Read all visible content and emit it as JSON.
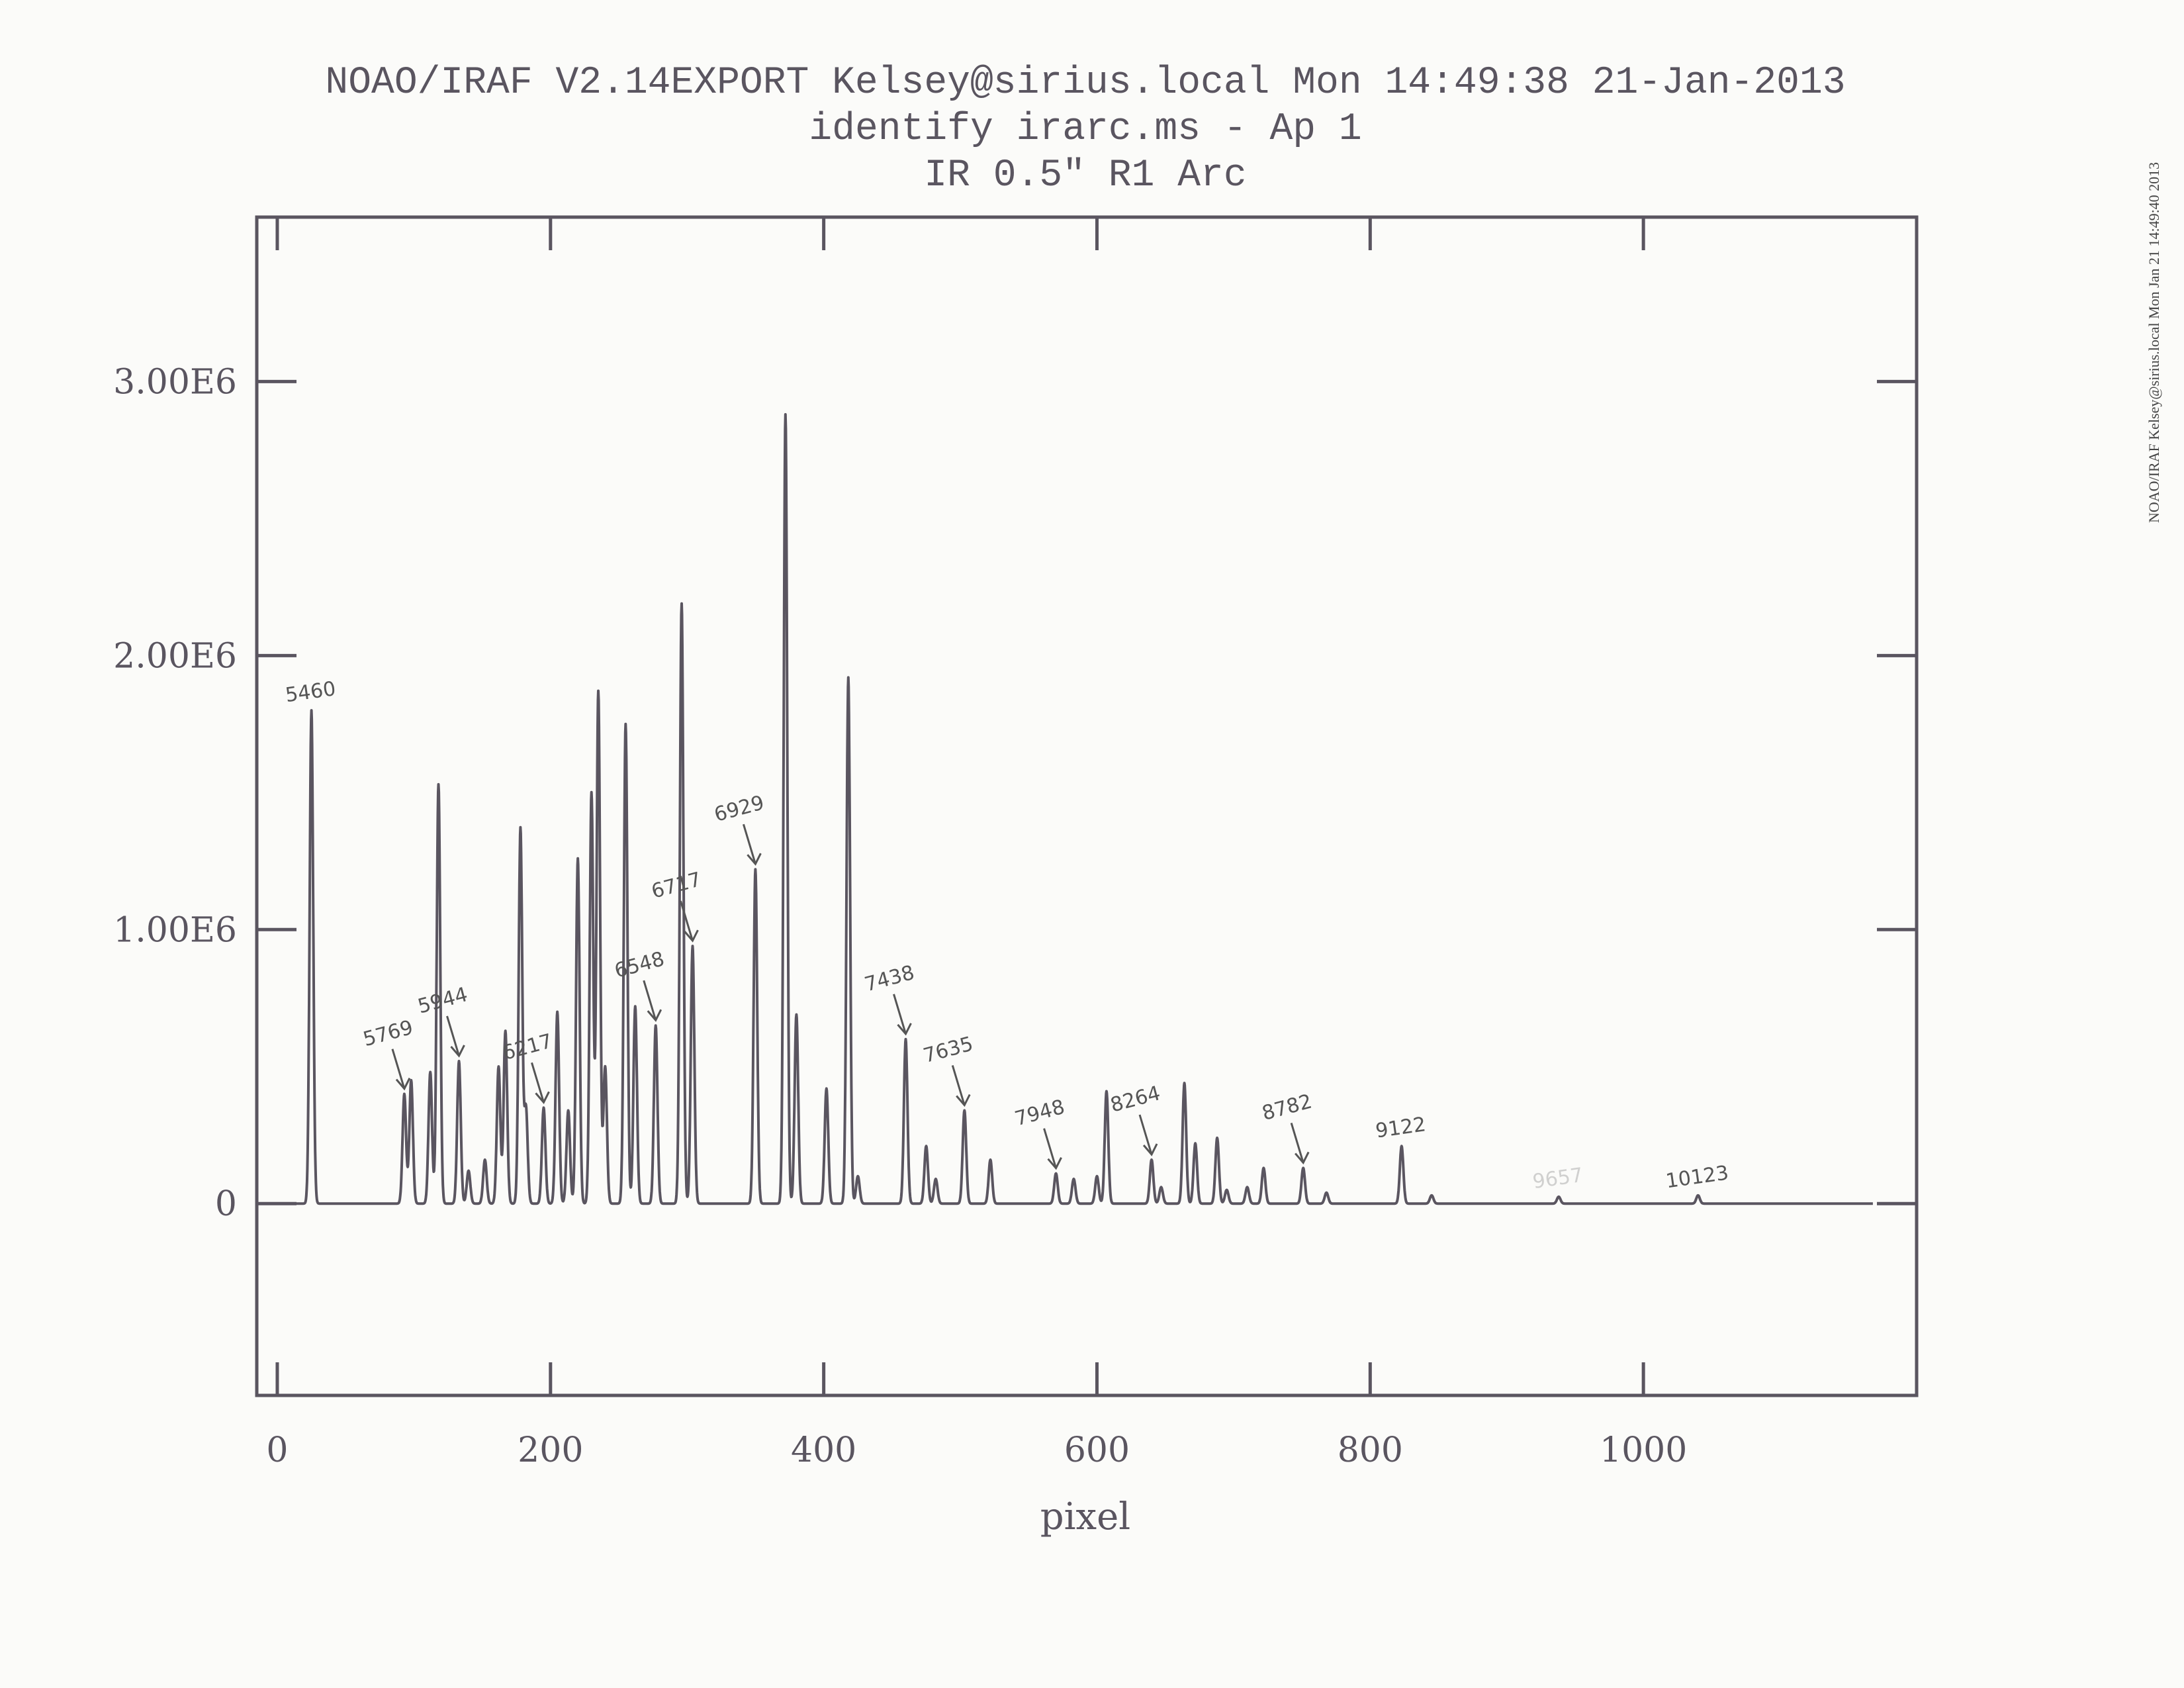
{
  "colors": {
    "ink": "#5a5560",
    "paper": "#fbfbf9",
    "annotation": "#555555"
  },
  "side_stamp": "NOAO/IRAF Kelsey@sirius.local Mon Jan 21 14:49:40 2013",
  "chart_data": {
    "type": "line",
    "title_lines": [
      "NOAO/IRAF V2.14EXPORT Kelsey@sirius.local Mon 14:49:38 21-Jan-2013",
      "identify irarc.ms - Ap 1",
      "IR 0.5\" R1 Arc"
    ],
    "xlabel": "pixel",
    "ylabel": "",
    "xlim": [
      -15,
      1200
    ],
    "ylim": [
      -700000,
      3600000
    ],
    "x_ticks": [
      0,
      200,
      400,
      600,
      800,
      1000
    ],
    "x_tick_labels": [
      "0",
      "200",
      "400",
      "600",
      "800",
      "1000"
    ],
    "y_ticks": [
      0,
      1000000,
      2000000,
      3000000
    ],
    "y_tick_labels": [
      "0",
      "1.00E6",
      "2.00E6",
      "3.00E6"
    ],
    "baseline": 0,
    "x_range": [
      0,
      1168
    ],
    "peaks": [
      {
        "x": 25,
        "y": 1800000
      },
      {
        "x": 93,
        "y": 400000
      },
      {
        "x": 98,
        "y": 450000
      },
      {
        "x": 112,
        "y": 480000
      },
      {
        "x": 118,
        "y": 1530000
      },
      {
        "x": 133,
        "y": 520000
      },
      {
        "x": 140,
        "y": 120000
      },
      {
        "x": 152,
        "y": 160000
      },
      {
        "x": 162,
        "y": 500000
      },
      {
        "x": 167,
        "y": 630000
      },
      {
        "x": 178,
        "y": 1370000
      },
      {
        "x": 182,
        "y": 350000
      },
      {
        "x": 195,
        "y": 350000
      },
      {
        "x": 205,
        "y": 700000
      },
      {
        "x": 213,
        "y": 340000
      },
      {
        "x": 220,
        "y": 1260000
      },
      {
        "x": 230,
        "y": 1500000
      },
      {
        "x": 235,
        "y": 1870000
      },
      {
        "x": 240,
        "y": 500000
      },
      {
        "x": 255,
        "y": 1750000
      },
      {
        "x": 262,
        "y": 720000
      },
      {
        "x": 277,
        "y": 650000
      },
      {
        "x": 296,
        "y": 2190000
      },
      {
        "x": 304,
        "y": 940000
      },
      {
        "x": 350,
        "y": 1220000
      },
      {
        "x": 372,
        "y": 2880000
      },
      {
        "x": 380,
        "y": 690000
      },
      {
        "x": 402,
        "y": 420000
      },
      {
        "x": 418,
        "y": 1920000
      },
      {
        "x": 425,
        "y": 100000
      },
      {
        "x": 460,
        "y": 600000
      },
      {
        "x": 475,
        "y": 210000
      },
      {
        "x": 482,
        "y": 90000
      },
      {
        "x": 503,
        "y": 340000
      },
      {
        "x": 522,
        "y": 160000
      },
      {
        "x": 570,
        "y": 110000
      },
      {
        "x": 583,
        "y": 90000
      },
      {
        "x": 600,
        "y": 100000
      },
      {
        "x": 607,
        "y": 410000
      },
      {
        "x": 640,
        "y": 160000
      },
      {
        "x": 647,
        "y": 60000
      },
      {
        "x": 664,
        "y": 440000
      },
      {
        "x": 672,
        "y": 220000
      },
      {
        "x": 688,
        "y": 240000
      },
      {
        "x": 695,
        "y": 50000
      },
      {
        "x": 710,
        "y": 60000
      },
      {
        "x": 722,
        "y": 130000
      },
      {
        "x": 751,
        "y": 130000
      },
      {
        "x": 768,
        "y": 40000
      },
      {
        "x": 823,
        "y": 210000
      },
      {
        "x": 845,
        "y": 30000
      },
      {
        "x": 938,
        "y": 25000
      },
      {
        "x": 1040,
        "y": 30000
      }
    ],
    "annotations": [
      {
        "label": "5460",
        "x": 25,
        "y": 1800000,
        "arrow": false
      },
      {
        "label": "5769",
        "x": 93,
        "y": 400000,
        "arrow": true
      },
      {
        "label": "5944",
        "x": 133,
        "y": 520000,
        "arrow": true
      },
      {
        "label": "6217",
        "x": 195,
        "y": 350000,
        "arrow": true
      },
      {
        "label": "6548",
        "x": 277,
        "y": 650000,
        "arrow": true
      },
      {
        "label": "6717",
        "x": 304,
        "y": 940000,
        "arrow": true
      },
      {
        "label": "6929",
        "x": 350,
        "y": 1220000,
        "arrow": true
      },
      {
        "label": "7438",
        "x": 460,
        "y": 600000,
        "arrow": true
      },
      {
        "label": "7635",
        "x": 503,
        "y": 340000,
        "arrow": true
      },
      {
        "label": "7948",
        "x": 570,
        "y": 110000,
        "arrow": true
      },
      {
        "label": "8264",
        "x": 640,
        "y": 160000,
        "arrow": true
      },
      {
        "label": "8782",
        "x": 751,
        "y": 130000,
        "arrow": true
      },
      {
        "label": "9122",
        "x": 823,
        "y": 210000,
        "arrow": false
      },
      {
        "label": "9657",
        "x": 938,
        "y": 25000,
        "arrow": false,
        "faint": true
      },
      {
        "label": "10123",
        "x": 1040,
        "y": 30000,
        "arrow": false
      }
    ]
  }
}
